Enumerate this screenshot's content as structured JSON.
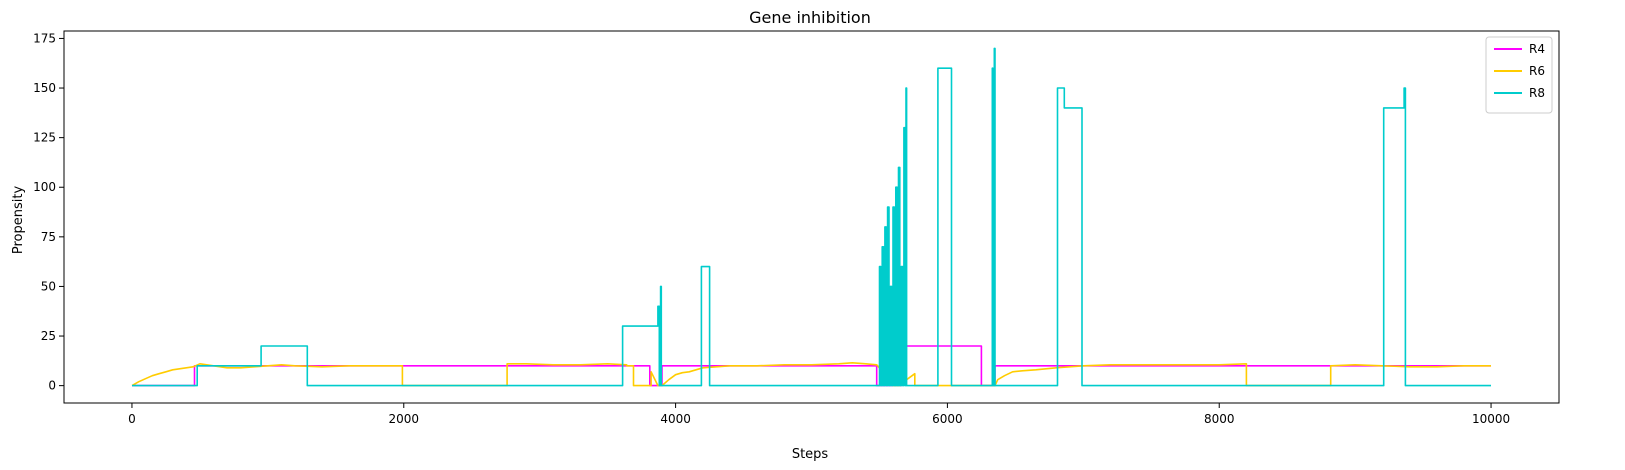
{
  "chart_data": {
    "type": "line",
    "title": "Gene inhibition",
    "xlabel": "Steps",
    "ylabel": "Propensity",
    "xlim": [
      -500,
      10500
    ],
    "ylim": [
      -8.75,
      178.75
    ],
    "xticks": [
      0,
      2000,
      4000,
      6000,
      8000,
      10000
    ],
    "yticks": [
      0,
      25,
      50,
      75,
      100,
      125,
      150,
      175
    ],
    "grid": false,
    "legend_position": "top-right",
    "series": [
      {
        "name": "R4",
        "color": "#ff00ff",
        "points": [
          [
            0,
            0
          ],
          [
            460,
            0
          ],
          [
            460,
            10
          ],
          [
            3810,
            10
          ],
          [
            3810,
            0
          ],
          [
            3900,
            0
          ],
          [
            3900,
            10
          ],
          [
            5480,
            10
          ],
          [
            5480,
            0
          ],
          [
            5660,
            0
          ],
          [
            5660,
            10
          ],
          [
            5690,
            10
          ],
          [
            5690,
            20
          ],
          [
            6250,
            20
          ],
          [
            6250,
            0
          ],
          [
            6350,
            0
          ],
          [
            6350,
            10
          ],
          [
            10000,
            10
          ]
        ]
      },
      {
        "name": "R6",
        "color": "#ffcc00",
        "points": [
          [
            0,
            0
          ],
          [
            50,
            2
          ],
          [
            100,
            3.5
          ],
          [
            150,
            5
          ],
          [
            200,
            6
          ],
          [
            250,
            7
          ],
          [
            300,
            8
          ],
          [
            350,
            8.5
          ],
          [
            400,
            9
          ],
          [
            450,
            9.5
          ],
          [
            500,
            11
          ],
          [
            600,
            10
          ],
          [
            700,
            9
          ],
          [
            800,
            9
          ],
          [
            900,
            9.5
          ],
          [
            1000,
            10
          ],
          [
            1100,
            10.5
          ],
          [
            1200,
            10
          ],
          [
            1400,
            9.5
          ],
          [
            1600,
            10
          ],
          [
            1800,
            10
          ],
          [
            1990,
            10
          ],
          [
            1990,
            0
          ],
          [
            2760,
            0
          ],
          [
            2760,
            11
          ],
          [
            2900,
            11
          ],
          [
            3100,
            10.5
          ],
          [
            3300,
            10.5
          ],
          [
            3500,
            11
          ],
          [
            3640,
            10.5
          ],
          [
            3640,
            10
          ],
          [
            3690,
            10
          ],
          [
            3690,
            0
          ],
          [
            3820,
            0
          ],
          [
            3820,
            7
          ],
          [
            3870,
            0
          ],
          [
            3900,
            0
          ],
          [
            3950,
            3
          ],
          [
            4000,
            5.5
          ],
          [
            4050,
            6.5
          ],
          [
            4100,
            7
          ],
          [
            4150,
            8
          ],
          [
            4200,
            9
          ],
          [
            4300,
            9.5
          ],
          [
            4400,
            10
          ],
          [
            4600,
            10
          ],
          [
            4800,
            10.5
          ],
          [
            5000,
            10.5
          ],
          [
            5200,
            11
          ],
          [
            5300,
            11.5
          ],
          [
            5400,
            11
          ],
          [
            5480,
            10.5
          ],
          [
            5550,
            5
          ],
          [
            5600,
            0
          ],
          [
            5650,
            0
          ],
          [
            5700,
            3
          ],
          [
            5760,
            6
          ],
          [
            5760,
            0
          ],
          [
            6350,
            0
          ],
          [
            6370,
            3
          ],
          [
            6420,
            5
          ],
          [
            6480,
            7
          ],
          [
            6550,
            7.5
          ],
          [
            6650,
            8
          ],
          [
            6800,
            9
          ],
          [
            6900,
            9.5
          ],
          [
            7000,
            10
          ],
          [
            7200,
            10.5
          ],
          [
            7400,
            10.5
          ],
          [
            7600,
            10.5
          ],
          [
            7800,
            10.5
          ],
          [
            8000,
            10.5
          ],
          [
            8200,
            11
          ],
          [
            8200,
            0
          ],
          [
            8820,
            0
          ],
          [
            8820,
            10
          ],
          [
            9000,
            10.5
          ],
          [
            9200,
            10
          ],
          [
            9400,
            9.5
          ],
          [
            9600,
            9.5
          ],
          [
            9800,
            10
          ],
          [
            10000,
            10
          ]
        ]
      },
      {
        "name": "R8",
        "color": "#00cccc",
        "points": [
          [
            0,
            0
          ],
          [
            480,
            0
          ],
          [
            480,
            10
          ],
          [
            950,
            10
          ],
          [
            950,
            20
          ],
          [
            1290,
            20
          ],
          [
            1290,
            0
          ],
          [
            3610,
            0
          ],
          [
            3610,
            30
          ],
          [
            3870,
            30
          ],
          [
            3870,
            40
          ],
          [
            3880,
            40
          ],
          [
            3880,
            0
          ],
          [
            3890,
            0
          ],
          [
            3890,
            50
          ],
          [
            3895,
            50
          ],
          [
            3895,
            0
          ],
          [
            4190,
            0
          ],
          [
            4190,
            60
          ],
          [
            4250,
            60
          ],
          [
            4250,
            0
          ],
          [
            5500,
            0
          ],
          [
            5500,
            60
          ],
          [
            5510,
            60
          ],
          [
            5510,
            0
          ],
          [
            5520,
            0
          ],
          [
            5520,
            70
          ],
          [
            5530,
            70
          ],
          [
            5530,
            0
          ],
          [
            5540,
            0
          ],
          [
            5540,
            80
          ],
          [
            5550,
            80
          ],
          [
            5550,
            0
          ],
          [
            5560,
            0
          ],
          [
            5560,
            90
          ],
          [
            5570,
            90
          ],
          [
            5570,
            0
          ],
          [
            5580,
            0
          ],
          [
            5580,
            50
          ],
          [
            5590,
            50
          ],
          [
            5590,
            0
          ],
          [
            5600,
            0
          ],
          [
            5600,
            90
          ],
          [
            5610,
            90
          ],
          [
            5610,
            0
          ],
          [
            5620,
            0
          ],
          [
            5620,
            100
          ],
          [
            5630,
            100
          ],
          [
            5630,
            0
          ],
          [
            5640,
            0
          ],
          [
            5640,
            110
          ],
          [
            5650,
            110
          ],
          [
            5650,
            0
          ],
          [
            5660,
            0
          ],
          [
            5660,
            60
          ],
          [
            5670,
            60
          ],
          [
            5670,
            0
          ],
          [
            5680,
            0
          ],
          [
            5680,
            130
          ],
          [
            5690,
            130
          ],
          [
            5690,
            0
          ],
          [
            5695,
            0
          ],
          [
            5695,
            150
          ],
          [
            5700,
            150
          ],
          [
            5700,
            0
          ],
          [
            5930,
            0
          ],
          [
            5930,
            160
          ],
          [
            6030,
            160
          ],
          [
            6030,
            0
          ],
          [
            6330,
            0
          ],
          [
            6330,
            160
          ],
          [
            6335,
            160
          ],
          [
            6335,
            0
          ],
          [
            6345,
            0
          ],
          [
            6345,
            170
          ],
          [
            6350,
            170
          ],
          [
            6350,
            0
          ],
          [
            6810,
            0
          ],
          [
            6810,
            150
          ],
          [
            6860,
            150
          ],
          [
            6860,
            140
          ],
          [
            6990,
            140
          ],
          [
            6990,
            0
          ],
          [
            9210,
            0
          ],
          [
            9210,
            140
          ],
          [
            9360,
            140
          ],
          [
            9360,
            150
          ],
          [
            9370,
            150
          ],
          [
            9370,
            0
          ],
          [
            10000,
            0
          ]
        ]
      }
    ]
  }
}
